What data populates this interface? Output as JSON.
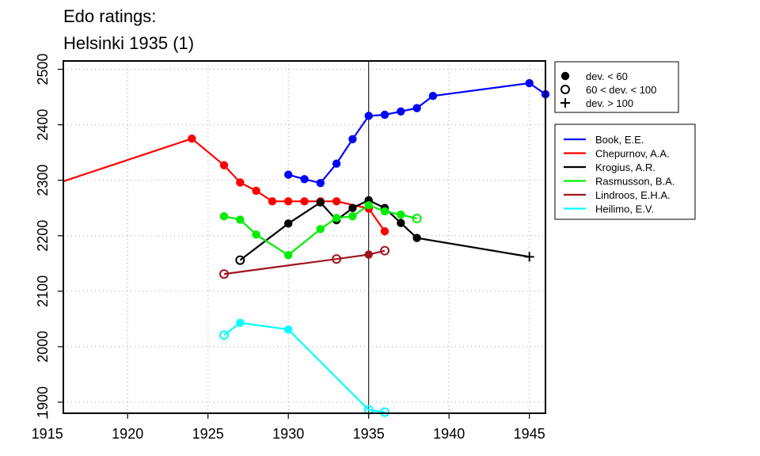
{
  "chart_data": {
    "type": "line",
    "title": [
      "Edo ratings:",
      "Helsinki 1935 (1)"
    ],
    "xlabel": "",
    "ylabel": "",
    "xlim": [
      1916,
      1946
    ],
    "ylim": [
      1880,
      2515
    ],
    "xticks": [
      1915,
      1920,
      1925,
      1930,
      1935,
      1940,
      1945
    ],
    "yticks": [
      1900,
      2000,
      2100,
      2200,
      2300,
      2400,
      2500
    ],
    "grid": true,
    "vline": 1935,
    "marker_legend": [
      {
        "marker": "filled",
        "label": "dev. < 60"
      },
      {
        "marker": "open",
        "label": "60 < dev. < 100"
      },
      {
        "marker": "plus",
        "label": "dev. > 100"
      }
    ],
    "series": [
      {
        "name": "Book, E.E.",
        "color": "#0000ff",
        "points": [
          [
            1930,
            2310,
            "filled"
          ],
          [
            1931,
            2302,
            "filled"
          ],
          [
            1932,
            2295,
            "filled"
          ],
          [
            1933,
            2330,
            "filled"
          ],
          [
            1934,
            2374,
            "filled"
          ],
          [
            1935,
            2416,
            "filled"
          ],
          [
            1936,
            2418,
            "filled"
          ],
          [
            1937,
            2424,
            "filled"
          ],
          [
            1938,
            2430,
            "filled"
          ],
          [
            1939,
            2452,
            "filled"
          ],
          [
            1945,
            2475,
            "filled"
          ],
          [
            1946,
            2455,
            "filled"
          ]
        ]
      },
      {
        "name": "Chepurnov, A.A.",
        "color": "#ff0000",
        "points": [
          [
            1916,
            2298,
            "none"
          ],
          [
            1924,
            2375,
            "filled"
          ],
          [
            1926,
            2327,
            "filled"
          ],
          [
            1927,
            2296,
            "filled"
          ],
          [
            1928,
            2281,
            "filled"
          ],
          [
            1929,
            2262,
            "filled"
          ],
          [
            1930,
            2262,
            "filled"
          ],
          [
            1931,
            2262,
            "filled"
          ],
          [
            1932,
            2262,
            "filled"
          ],
          [
            1933,
            2262,
            "filled"
          ],
          [
            1935,
            2249,
            "filled"
          ],
          [
            1936,
            2208,
            "filled"
          ]
        ]
      },
      {
        "name": "Krogius, A.R.",
        "color": "#000000",
        "points": [
          [
            1927,
            2156,
            "open"
          ],
          [
            1930,
            2222,
            "filled"
          ],
          [
            1932,
            2260,
            "filled"
          ],
          [
            1933,
            2228,
            "filled"
          ],
          [
            1934,
            2250,
            "filled"
          ],
          [
            1935,
            2264,
            "filled"
          ],
          [
            1936,
            2250,
            "filled"
          ],
          [
            1937,
            2223,
            "filled"
          ],
          [
            1938,
            2196,
            "filled"
          ],
          [
            1945,
            2162,
            "plus"
          ]
        ]
      },
      {
        "name": "Rasmusson, B.A.",
        "color": "#00ee00",
        "points": [
          [
            1926,
            2235,
            "filled"
          ],
          [
            1927,
            2229,
            "filled"
          ],
          [
            1928,
            2202,
            "filled"
          ],
          [
            1930,
            2165,
            "filled"
          ],
          [
            1932,
            2212,
            "filled"
          ],
          [
            1933,
            2232,
            "filled"
          ],
          [
            1934,
            2235,
            "filled"
          ],
          [
            1935,
            2255,
            "filled"
          ],
          [
            1936,
            2244,
            "filled"
          ],
          [
            1937,
            2238,
            "filled"
          ],
          [
            1938,
            2231,
            "open"
          ]
        ]
      },
      {
        "name": "Lindroos, E.H.A.",
        "color": "#a0141e",
        "points": [
          [
            1926,
            2131,
            "open"
          ],
          [
            1933,
            2158,
            "open"
          ],
          [
            1935,
            2166,
            "filled"
          ],
          [
            1936,
            2173,
            "open"
          ]
        ]
      },
      {
        "name": "Heilimo, E.V.",
        "color": "#00ffff",
        "points": [
          [
            1926,
            2021,
            "open"
          ],
          [
            1927,
            2043,
            "filled"
          ],
          [
            1930,
            2031,
            "filled"
          ],
          [
            1935,
            1886,
            "open"
          ],
          [
            1936,
            1882,
            "open"
          ]
        ]
      }
    ]
  }
}
